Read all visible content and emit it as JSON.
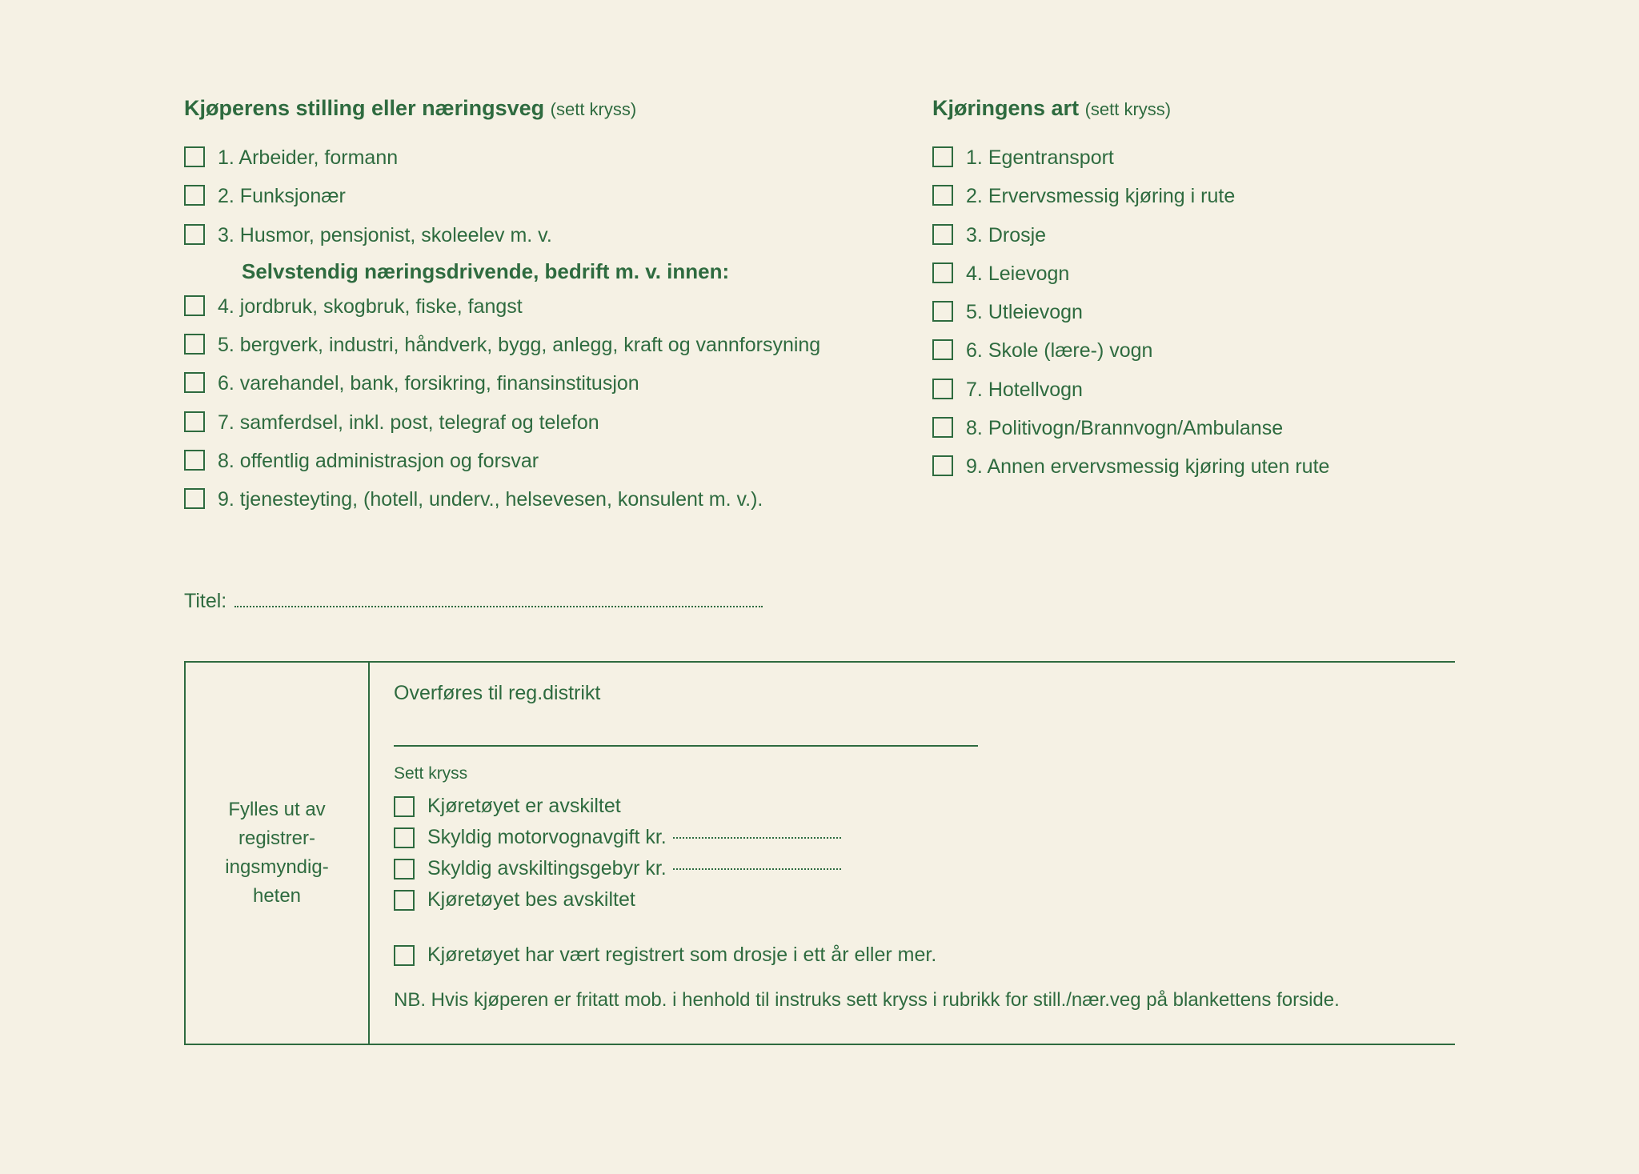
{
  "colors": {
    "ink": "#2e6b3f",
    "paper": "#f5f1e4",
    "frame": "#000000"
  },
  "leftSection": {
    "title": "Kjøperens stilling eller næringsveg",
    "hint": "(sett kryss)",
    "items1": [
      "1. Arbeider, formann",
      "2. Funksjonær",
      "3. Husmor, pensjonist, skoleelev m. v."
    ],
    "subheading": "Selvstendig næringsdrivende, bedrift m. v. innen:",
    "items2": [
      "4. jordbruk, skogbruk, fiske, fangst",
      "5. bergverk, industri, håndverk, bygg, anlegg, kraft og vannforsyning",
      "6. varehandel, bank, forsikring, finansinstitusjon",
      "7. samferdsel, inkl. post, telegraf og telefon",
      "8. offentlig administrasjon og forsvar",
      "9. tjenesteyting, (hotell, underv., helsevesen, konsulent m. v.)."
    ]
  },
  "rightSection": {
    "title": "Kjøringens art",
    "hint": "(sett kryss)",
    "items": [
      "1. Egentransport",
      "2. Ervervsmessig kjøring i rute",
      "3. Drosje",
      "4. Leievogn",
      "5. Utleievogn",
      "6. Skole (lære-) vogn",
      "7. Hotellvogn",
      "8. Politivogn/Brannvogn/Ambulanse",
      "9. Annen ervervsmessig kjøring uten rute"
    ]
  },
  "titel": {
    "label": "Titel:"
  },
  "bottomBox": {
    "leftLabel": "Fylles ut av registrer-ingsmyndig-heten",
    "overfores": "Overføres til reg.distrikt",
    "settKryss": "Sett kryss",
    "checks": [
      "Kjøretøyet er avskiltet",
      "Skyldig motorvognavgift kr.",
      "Skyldig avskiltingsgebyr kr.",
      "Kjøretøyet bes avskiltet"
    ],
    "drosjeLine": "Kjøretøyet har vært registrert som drosje i ett år eller mer.",
    "nbLine": "NB. Hvis kjøperen er fritatt mob. i henhold til instruks sett kryss i rubrikk for still./nær.veg på blankettens forside."
  }
}
